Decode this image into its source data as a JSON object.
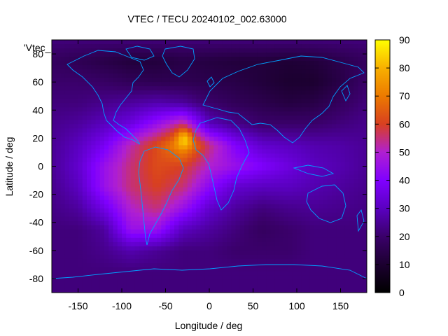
{
  "chart_data": {
    "type": "heatmap",
    "title": "VTEC / TECU 20240102_002.63000",
    "xlabel": "Longitude / deg",
    "ylabel": "Latitude / deg",
    "legend_entry": "'Vtec_",
    "xlim": [
      -180,
      180
    ],
    "ylim": [
      -90,
      90
    ],
    "xticks": [
      -150,
      -100,
      -50,
      0,
      50,
      100,
      150
    ],
    "yticks": [
      -80,
      -60,
      -40,
      -20,
      0,
      20,
      40,
      60,
      80
    ],
    "colorbar": {
      "min": 0,
      "max": 90,
      "ticks": [
        0,
        10,
        20,
        30,
        40,
        50,
        60,
        70,
        80,
        90
      ]
    },
    "grid": false,
    "colormap": [
      "#000000",
      "#1c0030",
      "#3a006a",
      "#5a00c0",
      "#8000ff",
      "#b020d0",
      "#d84020",
      "#ec7a00",
      "#f8b000",
      "#ffff00"
    ],
    "coastline_color": "#00a0ff",
    "peak": {
      "lon": -28,
      "lat": 20,
      "value": 90
    },
    "lons": [
      -180,
      -150,
      -120,
      -90,
      -60,
      -30,
      0,
      30,
      60,
      90,
      120,
      150,
      180
    ],
    "lats": [
      90,
      75,
      60,
      45,
      30,
      15,
      0,
      -15,
      -30,
      -45,
      -60,
      -75,
      -90
    ],
    "values": [
      [
        22,
        22,
        22,
        22,
        22,
        22,
        22,
        22,
        22,
        22,
        22,
        22,
        22
      ],
      [
        18,
        16,
        14,
        12,
        12,
        14,
        13,
        12,
        12,
        11,
        12,
        15,
        18
      ],
      [
        20,
        20,
        19,
        17,
        16,
        16,
        15,
        14,
        12,
        10,
        10,
        14,
        20
      ],
      [
        22,
        22,
        24,
        26,
        28,
        26,
        20,
        17,
        15,
        13,
        14,
        18,
        22
      ],
      [
        24,
        26,
        30,
        35,
        45,
        55,
        30,
        24,
        20,
        20,
        20,
        22,
        24
      ],
      [
        25,
        30,
        38,
        52,
        62,
        75,
        55,
        40,
        32,
        30,
        28,
        27,
        25
      ],
      [
        25,
        32,
        45,
        55,
        62,
        60,
        50,
        45,
        40,
        35,
        30,
        28,
        25
      ],
      [
        24,
        30,
        45,
        55,
        60,
        55,
        42,
        32,
        30,
        30,
        28,
        26,
        24
      ],
      [
        23,
        26,
        36,
        50,
        55,
        45,
        32,
        26,
        22,
        24,
        25,
        24,
        23
      ],
      [
        22,
        22,
        26,
        45,
        45,
        30,
        26,
        22,
        18,
        20,
        22,
        22,
        22
      ],
      [
        22,
        22,
        24,
        28,
        25,
        22,
        22,
        20,
        20,
        20,
        22,
        22,
        22
      ],
      [
        22,
        22,
        22,
        22,
        22,
        22,
        22,
        22,
        22,
        22,
        22,
        22,
        22
      ],
      [
        22,
        22,
        22,
        22,
        22,
        22,
        22,
        22,
        22,
        22,
        22,
        22,
        22
      ]
    ]
  }
}
